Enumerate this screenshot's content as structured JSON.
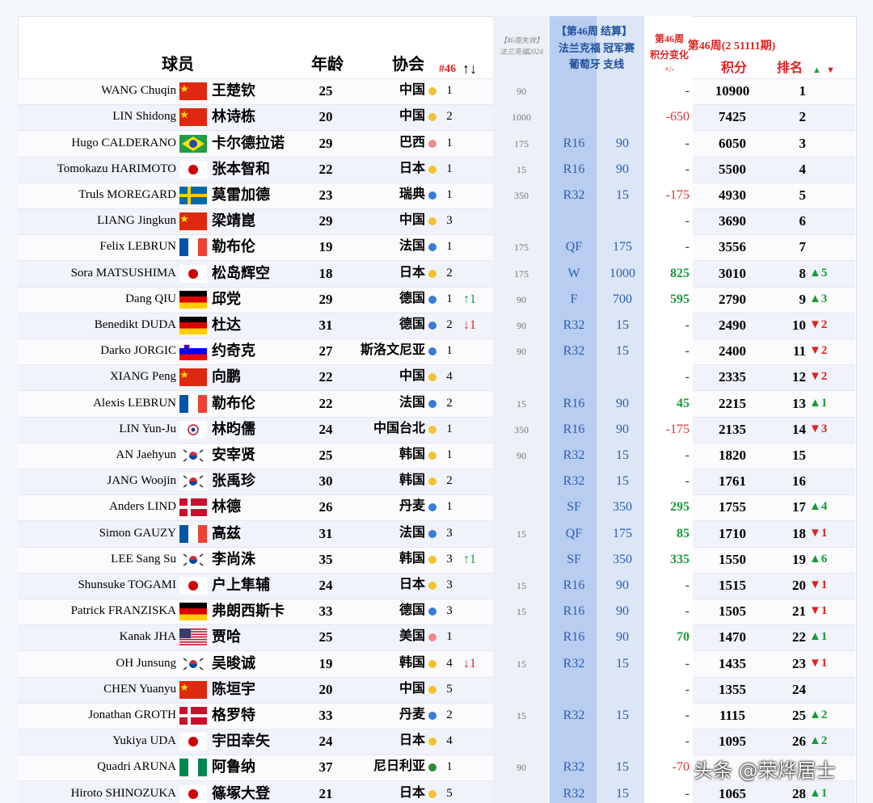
{
  "header": {
    "player": "球员",
    "age": "年龄",
    "assoc": "协会",
    "assoc_rank": "#46",
    "assoc_move": "↑↓",
    "expired": [
      "【46周失效】",
      "法兰克福2024"
    ],
    "settle": "【第46周 结算】",
    "event1": "法兰克福 冠军赛",
    "event2": "葡萄牙 支线",
    "change": [
      "第46周",
      "积分变化",
      "+/-"
    ],
    "week": "第46周(2 51111期)",
    "points": "积分",
    "rank": "排名",
    "rank_up": "▲",
    "rank_down": "▼"
  },
  "rows": [
    {
      "en": "WANG Chuqin",
      "cn": "王楚钦",
      "flag": "cn",
      "age": 25,
      "assoc": "中国",
      "dot": "#f2c230",
      "assoc_rank": 1,
      "expired": 90,
      "change": "-",
      "total": 10900,
      "rank": 1
    },
    {
      "en": "LIN Shidong",
      "cn": "林诗栋",
      "flag": "cn",
      "age": 20,
      "assoc": "中国",
      "dot": "#f2c230",
      "assoc_rank": 2,
      "expired": 1000,
      "change": -650,
      "total": 7425,
      "rank": 2
    },
    {
      "en": "Hugo CALDERANO",
      "cn": "卡尔德拉诺",
      "flag": "br",
      "age": 29,
      "assoc": "巴西",
      "dot": "#f08a8a",
      "assoc_rank": 1,
      "expired": 175,
      "round": "R16",
      "pts": 90,
      "change": "-",
      "total": 6050,
      "rank": 3
    },
    {
      "en": "Tomokazu HARIMOTO",
      "cn": "张本智和",
      "flag": "jp",
      "age": 22,
      "assoc": "日本",
      "dot": "#f2c230",
      "assoc_rank": 1,
      "expired": 15,
      "round": "R16",
      "pts": 90,
      "change": "-",
      "total": 5500,
      "rank": 4
    },
    {
      "en": "Truls MOREGARD",
      "cn": "莫雷加德",
      "flag": "se",
      "age": 23,
      "assoc": "瑞典",
      "dot": "#3a7bd5",
      "assoc_rank": 1,
      "expired": 350,
      "round": "R32",
      "pts": 15,
      "change": -175,
      "total": 4930,
      "rank": 5
    },
    {
      "en": "LIANG Jingkun",
      "cn": "梁靖崑",
      "flag": "cn",
      "age": 29,
      "assoc": "中国",
      "dot": "#f2c230",
      "assoc_rank": 3,
      "change": "-",
      "total": 3690,
      "rank": 6
    },
    {
      "en": "Felix LEBRUN",
      "cn": "勒布伦",
      "flag": "fr",
      "age": 19,
      "assoc": "法国",
      "dot": "#3a7bd5",
      "assoc_rank": 1,
      "expired": 175,
      "round": "QF",
      "pts": 175,
      "change": "-",
      "total": 3556,
      "rank": 7
    },
    {
      "en": "Sora MATSUSHIMA",
      "cn": "松岛辉空",
      "flag": "jp",
      "age": 18,
      "assoc": "日本",
      "dot": "#f2c230",
      "assoc_rank": 2,
      "expired": 175,
      "round": "W",
      "pts": 1000,
      "change": 825,
      "total": 3010,
      "rank": 8,
      "rank_move": "▲5"
    },
    {
      "en": "Dang QIU",
      "cn": "邱党",
      "flag": "de",
      "age": 29,
      "assoc": "德国",
      "dot": "#3a7bd5",
      "assoc_rank": 1,
      "move": "↑1",
      "expired": 90,
      "round": "F",
      "pts": 700,
      "change": 595,
      "total": 2790,
      "rank": 9,
      "rank_move": "▲3"
    },
    {
      "en": "Benedikt DUDA",
      "cn": "杜达",
      "flag": "de",
      "age": 31,
      "assoc": "德国",
      "dot": "#3a7bd5",
      "assoc_rank": 2,
      "move": "↓1",
      "expired": 90,
      "round": "R32",
      "pts": 15,
      "change": "-",
      "total": 2490,
      "rank": 10,
      "rank_move": "▼2"
    },
    {
      "en": "Darko JORGIC",
      "cn": "约奇克",
      "flag": "si",
      "age": 27,
      "assoc": "斯洛文尼亚",
      "dot": "#3a7bd5",
      "assoc_rank": 1,
      "expired": 90,
      "round": "R32",
      "pts": 15,
      "change": "-",
      "total": 2400,
      "rank": 11,
      "rank_move": "▼2"
    },
    {
      "en": "XIANG Peng",
      "cn": "向鹏",
      "flag": "cn",
      "age": 22,
      "assoc": "中国",
      "dot": "#f2c230",
      "assoc_rank": 4,
      "change": "-",
      "total": 2335,
      "rank": 12,
      "rank_move": "▼2"
    },
    {
      "en": "Alexis LEBRUN",
      "cn": "勒布伦",
      "flag": "fr",
      "age": 22,
      "assoc": "法国",
      "dot": "#3a7bd5",
      "assoc_rank": 2,
      "expired": 15,
      "round": "R16",
      "pts": 90,
      "change": 45,
      "total": 2215,
      "rank": 13,
      "rank_move": "▲1"
    },
    {
      "en": "LIN Yun-Ju",
      "cn": "林昀儒",
      "flag": "tw",
      "age": 24,
      "assoc": "中国台北",
      "dot": "#f2c230",
      "assoc_rank": 1,
      "expired": 350,
      "round": "R16",
      "pts": 90,
      "change": -175,
      "total": 2135,
      "rank": 14,
      "rank_move": "▼3"
    },
    {
      "en": "AN Jaehyun",
      "cn": "安宰贤",
      "flag": "kr",
      "age": 25,
      "assoc": "韩国",
      "dot": "#f2c230",
      "assoc_rank": 1,
      "expired": 90,
      "round": "R32",
      "pts": 15,
      "change": "-",
      "total": 1820,
      "rank": 15
    },
    {
      "en": "JANG Woojin",
      "cn": "张禹珍",
      "flag": "kr",
      "age": 30,
      "assoc": "韩国",
      "dot": "#f2c230",
      "assoc_rank": 2,
      "round": "R32",
      "pts": 15,
      "change": "-",
      "total": 1761,
      "rank": 16
    },
    {
      "en": "Anders LIND",
      "cn": "林德",
      "flag": "dk",
      "age": 26,
      "assoc": "丹麦",
      "dot": "#3a7bd5",
      "assoc_rank": 1,
      "round": "SF",
      "pts": 350,
      "change": 295,
      "total": 1755,
      "rank": 17,
      "rank_move": "▲4"
    },
    {
      "en": "Simon GAUZY",
      "cn": "高兹",
      "flag": "fr",
      "age": 31,
      "assoc": "法国",
      "dot": "#3a7bd5",
      "assoc_rank": 3,
      "expired": 15,
      "round": "QF",
      "pts": 175,
      "change": 85,
      "total": 1710,
      "rank": 18,
      "rank_move": "▼1"
    },
    {
      "en": "LEE Sang Su",
      "cn": "李尚洙",
      "flag": "kr",
      "age": 35,
      "assoc": "韩国",
      "dot": "#f2c230",
      "assoc_rank": 3,
      "move": "↑1",
      "round": "SF",
      "pts": 350,
      "change": 335,
      "total": 1550,
      "rank": 19,
      "rank_move": "▲6"
    },
    {
      "en": "Shunsuke TOGAMI",
      "cn": "户上隼辅",
      "flag": "jp",
      "age": 24,
      "assoc": "日本",
      "dot": "#f2c230",
      "assoc_rank": 3,
      "expired": 15,
      "round": "R16",
      "pts": 90,
      "change": "-",
      "total": 1515,
      "rank": 20,
      "rank_move": "▼1"
    },
    {
      "en": "Patrick FRANZISKA",
      "cn": "弗朗西斯卡",
      "flag": "de",
      "age": 33,
      "assoc": "德国",
      "dot": "#3a7bd5",
      "assoc_rank": 3,
      "expired": 15,
      "round": "R16",
      "pts": 90,
      "change": "-",
      "total": 1505,
      "rank": 21,
      "rank_move": "▼1"
    },
    {
      "en": "Kanak JHA",
      "cn": "贾哈",
      "flag": "us",
      "age": 25,
      "assoc": "美国",
      "dot": "#f08a8a",
      "assoc_rank": 1,
      "round": "R16",
      "pts": 90,
      "change": 70,
      "total": 1470,
      "rank": 22,
      "rank_move": "▲1"
    },
    {
      "en": "OH Junsung",
      "cn": "吴晙诚",
      "flag": "kr",
      "age": 19,
      "assoc": "韩国",
      "dot": "#f2c230",
      "assoc_rank": 4,
      "move": "↓1",
      "expired": 15,
      "round": "R32",
      "pts": 15,
      "change": "-",
      "total": 1435,
      "rank": 23,
      "rank_move": "▼1"
    },
    {
      "en": "CHEN Yuanyu",
      "cn": "陈垣宇",
      "flag": "cn",
      "age": 20,
      "assoc": "中国",
      "dot": "#f2c230",
      "assoc_rank": 5,
      "change": "-",
      "total": 1355,
      "rank": 24
    },
    {
      "en": "Jonathan GROTH",
      "cn": "格罗特",
      "flag": "dk",
      "age": 33,
      "assoc": "丹麦",
      "dot": "#3a7bd5",
      "assoc_rank": 2,
      "expired": 15,
      "round": "R32",
      "pts": 15,
      "change": "-",
      "total": 1115,
      "rank": 25,
      "rank_move": "▲2"
    },
    {
      "en": "Yukiya UDA",
      "cn": "宇田幸矢",
      "flag": "jp",
      "age": 24,
      "assoc": "日本",
      "dot": "#f2c230",
      "assoc_rank": 4,
      "change": "-",
      "total": 1095,
      "rank": 26,
      "rank_move": "▲2"
    },
    {
      "en": "Quadri ARUNA",
      "cn": "阿鲁纳",
      "flag": "ng",
      "age": 37,
      "assoc": "尼日利亚",
      "dot": "#2e8b3a",
      "assoc_rank": 1,
      "expired": 90,
      "round": "R32",
      "pts": 15,
      "change": -70
    },
    {
      "en": "Hiroto SHINOZUKA",
      "cn": "篠塚大登",
      "flag": "jp",
      "age": 21,
      "assoc": "日本",
      "dot": "#f2c230",
      "assoc_rank": 5,
      "round": "R32",
      "pts": 15,
      "change": "-",
      "total": 1065,
      "rank": 28,
      "rank_move": "▲1"
    }
  ],
  "watermark": "头条 @荣烨居士"
}
